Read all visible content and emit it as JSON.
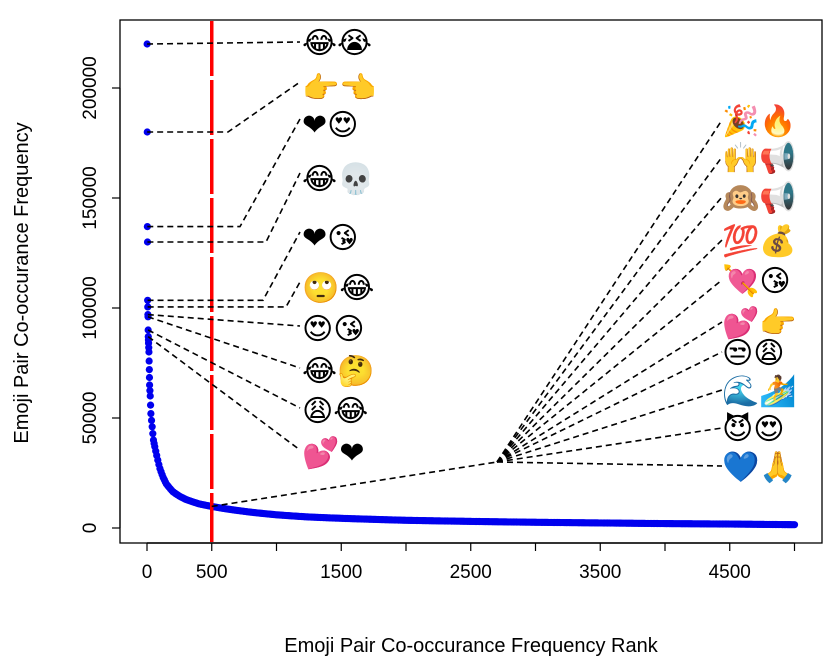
{
  "chart_data": {
    "type": "scatter",
    "xlabel": "Emoji Pair Co-occurance Frequency Rank",
    "ylabel": "Emoji Pair Co-occurance Frequency",
    "xlim": [
      -100,
      5100
    ],
    "ylim": [
      -7000,
      230000
    ],
    "x_ticks": [
      0,
      500,
      1500,
      2500,
      3500,
      4500
    ],
    "y_ticks": [
      0,
      50000,
      100000,
      150000,
      200000
    ],
    "grid": false,
    "point_color": "#0000ee",
    "threshold": {
      "rank": 500,
      "color": "#ff0000",
      "style": "dashed"
    },
    "points": [
      [
        1,
        220000
      ],
      [
        2,
        180000
      ],
      [
        3,
        137000
      ],
      [
        4,
        130000
      ],
      [
        5,
        103500
      ],
      [
        6,
        100500
      ],
      [
        7,
        97000
      ],
      [
        8,
        96000
      ],
      [
        9,
        90000
      ],
      [
        10,
        87000
      ],
      [
        12,
        84000
      ],
      [
        15,
        80000
      ],
      [
        18,
        72000
      ],
      [
        20,
        65000
      ],
      [
        25,
        60000
      ],
      [
        30,
        52000
      ],
      [
        40,
        46000
      ],
      [
        50,
        40000
      ],
      [
        60,
        37000
      ],
      [
        75,
        33000
      ],
      [
        100,
        27000
      ],
      [
        125,
        23000
      ],
      [
        150,
        20000
      ],
      [
        200,
        16500
      ],
      [
        250,
        14500
      ],
      [
        300,
        13000
      ],
      [
        400,
        11000
      ],
      [
        500,
        9800
      ],
      [
        600,
        8800
      ],
      [
        800,
        7200
      ],
      [
        1000,
        6000
      ],
      [
        1250,
        5000
      ],
      [
        1500,
        4400
      ],
      [
        2000,
        3500
      ],
      [
        2500,
        3000
      ],
      [
        3000,
        2600
      ],
      [
        3500,
        2300
      ],
      [
        4000,
        2000
      ],
      [
        4500,
        1800
      ],
      [
        5000,
        1500
      ]
    ],
    "top_pairs": [
      {
        "emojis": "😂😭",
        "rank": 1,
        "frequency": 220000
      },
      {
        "emojis": "👉👈",
        "rank": 2,
        "frequency": 180000
      },
      {
        "emojis": "❤😍",
        "rank": 3,
        "frequency": 137000
      },
      {
        "emojis": "😂💀",
        "rank": 4,
        "frequency": 130000
      },
      {
        "emojis": "❤😘",
        "rank": 5,
        "frequency": 103500
      },
      {
        "emojis": "🙄😂",
        "rank": 6,
        "frequency": 100500
      },
      {
        "emojis": "😍😘",
        "rank": 7,
        "frequency": 97000
      },
      {
        "emojis": "😂🤔",
        "rank": 8,
        "frequency": 96000
      },
      {
        "emojis": "😩😂",
        "rank": 9,
        "frequency": 90000
      },
      {
        "emojis": "💕❤",
        "rank": 10,
        "frequency": 87000
      }
    ],
    "threshold_pairs": [
      {
        "emojis": "🎉🔥"
      },
      {
        "emojis": "🙌📢"
      },
      {
        "emojis": "🙉📢"
      },
      {
        "emojis": "💯💰"
      },
      {
        "emojis": "💘😘"
      },
      {
        "emojis": "💕👉"
      },
      {
        "emojis": "😒😩"
      },
      {
        "emojis": "🌊🏄"
      },
      {
        "emojis": "😈😍"
      },
      {
        "emojis": "💙🙏"
      }
    ]
  }
}
